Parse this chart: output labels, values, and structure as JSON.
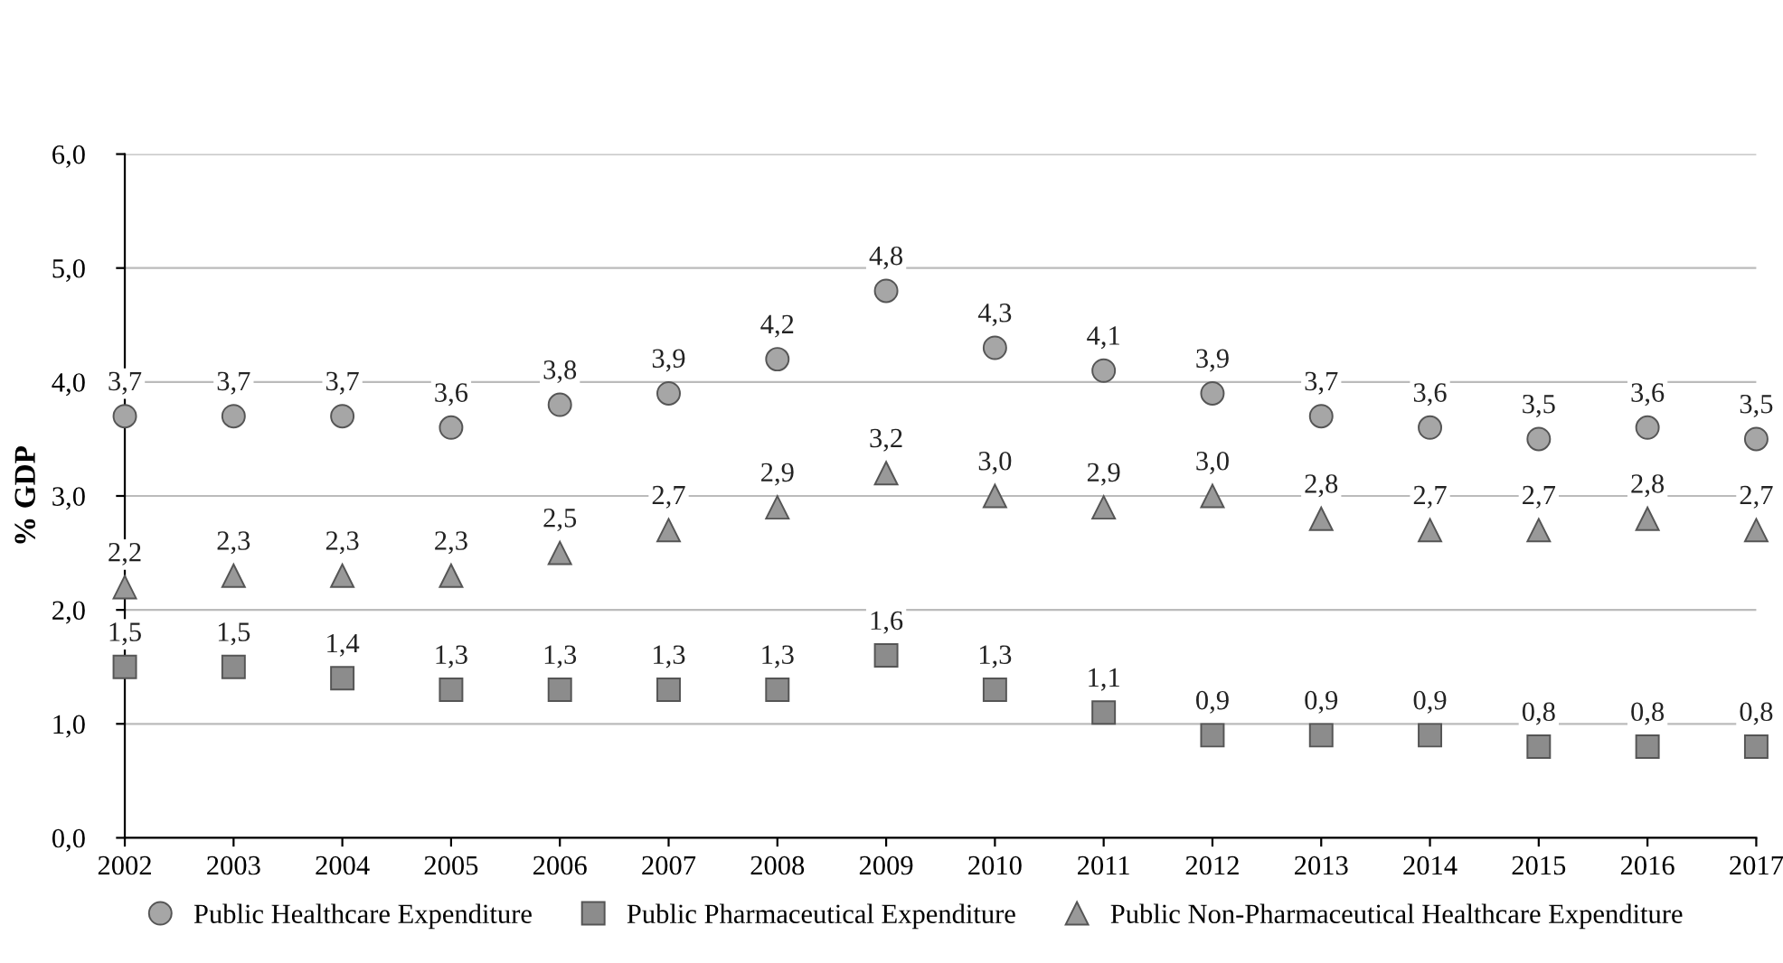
{
  "chart_data": {
    "type": "scatter",
    "ylabel": "% GDP",
    "categories": [
      "2002",
      "2003",
      "2004",
      "2005",
      "2006",
      "2007",
      "2008",
      "2009",
      "2010",
      "2011",
      "2012",
      "2013",
      "2014",
      "2015",
      "2016",
      "2017"
    ],
    "ylim": [
      0,
      6
    ],
    "yticks": [
      {
        "value": 0,
        "label": "0,0"
      },
      {
        "value": 1,
        "label": "1,0"
      },
      {
        "value": 2,
        "label": "2,0"
      },
      {
        "value": 3,
        "label": "3,0"
      },
      {
        "value": 4,
        "label": "4,0"
      },
      {
        "value": 5,
        "label": "5,0"
      },
      {
        "value": 6,
        "label": "6,0"
      }
    ],
    "grid": "y",
    "legend": "bottom",
    "series": [
      {
        "name": "Public Healthcare Expenditure",
        "color": "#a6a6a6",
        "marker": "circle",
        "values": [
          3.7,
          3.7,
          3.7,
          3.6,
          3.8,
          3.9,
          4.2,
          4.8,
          4.3,
          4.1,
          3.9,
          3.7,
          3.6,
          3.5,
          3.6,
          3.5
        ],
        "value_labels": [
          "3,7",
          "3,7",
          "3,7",
          "3,6",
          "3,8",
          "3,9",
          "4,2",
          "4,8",
          "4,3",
          "4,1",
          "3,9",
          "3,7",
          "3,6",
          "3,5",
          "3,6",
          "3,5"
        ]
      },
      {
        "name": "Public Pharmaceutical Expenditure",
        "color": "#8c8c8c",
        "marker": "square",
        "values": [
          1.5,
          1.5,
          1.4,
          1.3,
          1.3,
          1.3,
          1.3,
          1.6,
          1.3,
          1.1,
          0.9,
          0.9,
          0.9,
          0.8,
          0.8,
          0.8
        ],
        "value_labels": [
          "1,5",
          "1,5",
          "1,4",
          "1,3",
          "1,3",
          "1,3",
          "1,3",
          "1,6",
          "1,3",
          "1,1",
          "0,9",
          "0,9",
          "0,9",
          "0,8",
          "0,8",
          "0,8"
        ]
      },
      {
        "name": "Public Non-Pharmaceutical Healthcare Expenditure",
        "color": "#999999",
        "marker": "triangle",
        "values": [
          2.2,
          2.3,
          2.3,
          2.3,
          2.5,
          2.7,
          2.9,
          3.2,
          3.0,
          2.9,
          3.0,
          2.8,
          2.7,
          2.7,
          2.8,
          2.7
        ],
        "value_labels": [
          "2,2",
          "2,3",
          "2,3",
          "2,3",
          "2,5",
          "2,7",
          "2,9",
          "3,2",
          "3,0",
          "2,9",
          "3,0",
          "2,8",
          "2,7",
          "2,7",
          "2,8",
          "2,7"
        ]
      }
    ]
  }
}
